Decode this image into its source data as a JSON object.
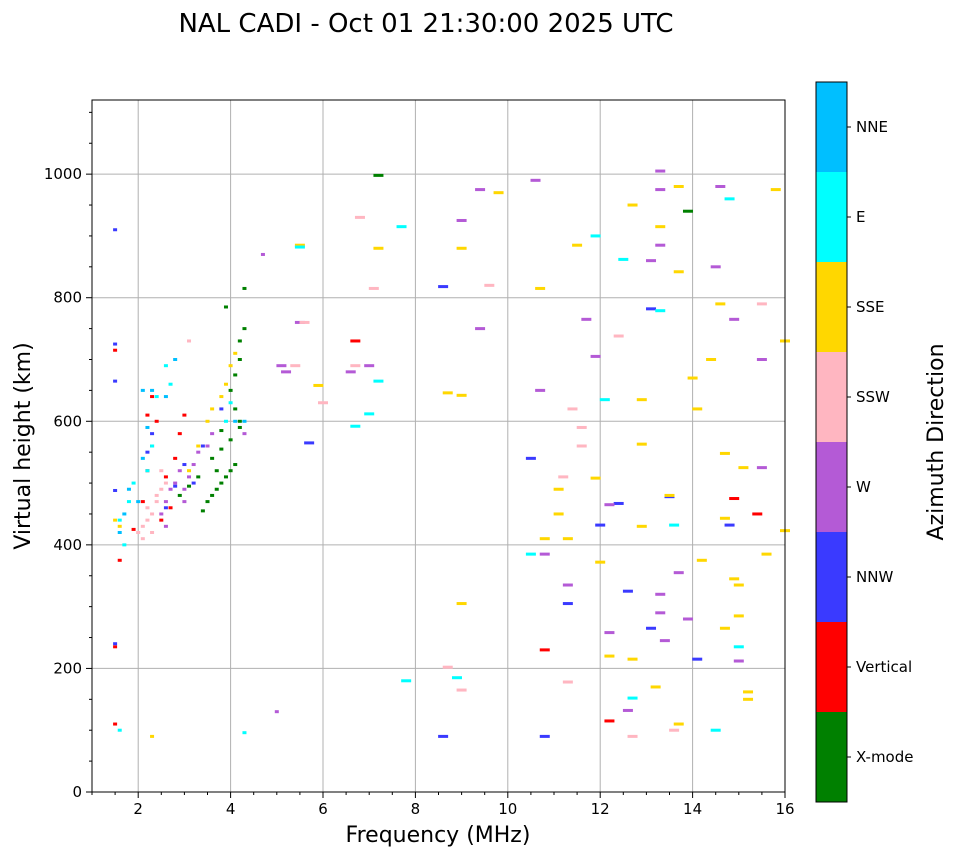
{
  "chart_data": {
    "type": "scatter",
    "title": "NAL CADI - Oct 01 21:30:00 2025 UTC",
    "xlabel": "Frequency (MHz)",
    "ylabel": "Virtual height (km)",
    "xlim": [
      1,
      16
    ],
    "ylim": [
      0,
      1120
    ],
    "x_ticks": [
      2,
      4,
      6,
      8,
      10,
      12,
      14,
      16
    ],
    "y_ticks": [
      0,
      200,
      400,
      600,
      800,
      1000
    ],
    "grid": true,
    "colorbar": {
      "label": "Azimuth Direction",
      "position": "right",
      "categories": [
        {
          "name": "X-mode",
          "color": "#008000"
        },
        {
          "name": "Vertical",
          "color": "#ff0000"
        },
        {
          "name": "NNW",
          "color": "#3a3aff"
        },
        {
          "name": "W",
          "color": "#b45ad6"
        },
        {
          "name": "SSW",
          "color": "#ffb6c1"
        },
        {
          "name": "SSE",
          "color": "#ffd700"
        },
        {
          "name": "E",
          "color": "#00ffff"
        },
        {
          "name": "NNE",
          "color": "#00bfff"
        }
      ]
    },
    "series": [
      {
        "name": "X-mode",
        "points": [
          [
            3.4,
            455
          ],
          [
            3.5,
            470
          ],
          [
            3.6,
            480
          ],
          [
            3.7,
            490
          ],
          [
            3.8,
            500
          ],
          [
            3.9,
            510
          ],
          [
            4.0,
            520
          ],
          [
            4.1,
            530
          ],
          [
            3.6,
            540
          ],
          [
            3.8,
            555
          ],
          [
            4.0,
            570
          ],
          [
            4.2,
            590
          ],
          [
            4.2,
            600
          ],
          [
            4.1,
            620
          ],
          [
            4.0,
            650
          ],
          [
            4.1,
            675
          ],
          [
            4.2,
            700
          ],
          [
            4.2,
            730
          ],
          [
            4.3,
            750
          ],
          [
            3.8,
            585
          ],
          [
            3.7,
            520
          ],
          [
            3.3,
            510
          ],
          [
            3.1,
            495
          ],
          [
            2.9,
            480
          ],
          [
            4.3,
            815
          ],
          [
            3.9,
            785
          ],
          [
            7.2,
            998
          ],
          [
            13.9,
            940
          ]
        ]
      },
      {
        "name": "Vertical",
        "points": [
          [
            1.5,
            715
          ],
          [
            1.5,
            235
          ],
          [
            1.5,
            110
          ],
          [
            1.6,
            375
          ],
          [
            1.9,
            425
          ],
          [
            2.1,
            470
          ],
          [
            2.2,
            520
          ],
          [
            2.3,
            560
          ],
          [
            2.4,
            600
          ],
          [
            2.6,
            510
          ],
          [
            2.8,
            540
          ],
          [
            2.9,
            580
          ],
          [
            3.0,
            610
          ],
          [
            2.7,
            460
          ],
          [
            2.5,
            440
          ],
          [
            2.2,
            610
          ],
          [
            2.3,
            640
          ],
          [
            6.7,
            730
          ],
          [
            12.2,
            115
          ],
          [
            14.9,
            475
          ],
          [
            15.4,
            450
          ],
          [
            10.8,
            230
          ]
        ]
      },
      {
        "name": "NNW",
        "points": [
          [
            1.5,
            910
          ],
          [
            1.5,
            725
          ],
          [
            1.5,
            665
          ],
          [
            1.5,
            488
          ],
          [
            1.5,
            240
          ],
          [
            2.2,
            550
          ],
          [
            2.3,
            580
          ],
          [
            2.6,
            460
          ],
          [
            2.8,
            495
          ],
          [
            3.0,
            530
          ],
          [
            3.2,
            500
          ],
          [
            3.4,
            560
          ],
          [
            3.8,
            620
          ],
          [
            5.7,
            565
          ],
          [
            8.6,
            818
          ],
          [
            8.6,
            90
          ],
          [
            10.5,
            540
          ],
          [
            10.8,
            90
          ],
          [
            11.3,
            305
          ],
          [
            12.0,
            432
          ],
          [
            12.4,
            467
          ],
          [
            12.6,
            325
          ],
          [
            13.1,
            265
          ],
          [
            13.5,
            478
          ],
          [
            14.1,
            215
          ],
          [
            14.8,
            432
          ],
          [
            13.1,
            782
          ]
        ]
      },
      {
        "name": "W",
        "points": [
          [
            2.6,
            470
          ],
          [
            2.7,
            490
          ],
          [
            2.8,
            500
          ],
          [
            2.9,
            520
          ],
          [
            3.0,
            490
          ],
          [
            3.1,
            510
          ],
          [
            3.2,
            530
          ],
          [
            3.3,
            550
          ],
          [
            3.5,
            560
          ],
          [
            3.6,
            580
          ],
          [
            2.5,
            450
          ],
          [
            2.6,
            430
          ],
          [
            3.0,
            470
          ],
          [
            4.3,
            580
          ],
          [
            4.7,
            870
          ],
          [
            5.0,
            130
          ],
          [
            5.1,
            690
          ],
          [
            5.2,
            680
          ],
          [
            5.5,
            760
          ],
          [
            6.6,
            680
          ],
          [
            7.0,
            690
          ],
          [
            9.0,
            925
          ],
          [
            9.4,
            975
          ],
          [
            9.4,
            750
          ],
          [
            10.6,
            990
          ],
          [
            10.7,
            650
          ],
          [
            10.8,
            385
          ],
          [
            11.3,
            335
          ],
          [
            11.7,
            765
          ],
          [
            11.9,
            705
          ],
          [
            12.2,
            258
          ],
          [
            12.2,
            465
          ],
          [
            13.1,
            860
          ],
          [
            13.3,
            1005
          ],
          [
            13.3,
            975
          ],
          [
            13.3,
            885
          ],
          [
            13.3,
            320
          ],
          [
            13.3,
            290
          ],
          [
            13.4,
            245
          ],
          [
            13.7,
            355
          ],
          [
            13.9,
            280
          ],
          [
            14.5,
            850
          ],
          [
            14.6,
            980
          ],
          [
            14.9,
            765
          ],
          [
            15.0,
            212
          ],
          [
            15.5,
            700
          ],
          [
            15.5,
            525
          ],
          [
            12.6,
            132
          ]
        ]
      },
      {
        "name": "SSW",
        "points": [
          [
            2.0,
            420
          ],
          [
            2.1,
            430
          ],
          [
            2.2,
            440
          ],
          [
            2.3,
            450
          ],
          [
            2.4,
            470
          ],
          [
            2.5,
            490
          ],
          [
            2.6,
            500
          ],
          [
            2.5,
            520
          ],
          [
            2.4,
            480
          ],
          [
            2.2,
            460
          ],
          [
            2.1,
            410
          ],
          [
            2.3,
            420
          ],
          [
            3.1,
            730
          ],
          [
            5.4,
            690
          ],
          [
            5.6,
            760
          ],
          [
            6.0,
            630
          ],
          [
            6.7,
            690
          ],
          [
            6.8,
            930
          ],
          [
            7.1,
            815
          ],
          [
            9.0,
            165
          ],
          [
            9.6,
            820
          ],
          [
            11.2,
            510
          ],
          [
            11.6,
            560
          ],
          [
            11.6,
            590
          ],
          [
            11.4,
            620
          ],
          [
            12.4,
            738
          ],
          [
            12.7,
            90
          ],
          [
            13.6,
            100
          ],
          [
            15.5,
            790
          ],
          [
            11.3,
            178
          ],
          [
            8.7,
            202
          ]
        ]
      },
      {
        "name": "SSE",
        "points": [
          [
            1.5,
            440
          ],
          [
            1.6,
            430
          ],
          [
            2.3,
            90
          ],
          [
            3.1,
            520
          ],
          [
            3.3,
            560
          ],
          [
            3.5,
            600
          ],
          [
            3.6,
            620
          ],
          [
            3.8,
            640
          ],
          [
            3.9,
            660
          ],
          [
            4.0,
            690
          ],
          [
            4.1,
            710
          ],
          [
            5.5,
            885
          ],
          [
            5.9,
            658
          ],
          [
            7.2,
            880
          ],
          [
            8.7,
            646
          ],
          [
            9.0,
            305
          ],
          [
            9.0,
            642
          ],
          [
            9.0,
            880
          ],
          [
            9.8,
            970
          ],
          [
            10.7,
            815
          ],
          [
            10.8,
            410
          ],
          [
            11.1,
            450
          ],
          [
            11.1,
            490
          ],
          [
            11.3,
            410
          ],
          [
            11.5,
            885
          ],
          [
            11.9,
            508
          ],
          [
            12.0,
            372
          ],
          [
            12.2,
            220
          ],
          [
            12.7,
            950
          ],
          [
            12.7,
            215
          ],
          [
            12.9,
            635
          ],
          [
            12.9,
            563
          ],
          [
            12.9,
            430
          ],
          [
            13.2,
            170
          ],
          [
            13.3,
            915
          ],
          [
            13.5,
            480
          ],
          [
            13.7,
            980
          ],
          [
            13.7,
            842
          ],
          [
            13.7,
            110
          ],
          [
            14.0,
            670
          ],
          [
            14.1,
            620
          ],
          [
            14.2,
            375
          ],
          [
            14.4,
            700
          ],
          [
            14.6,
            790
          ],
          [
            14.7,
            548
          ],
          [
            14.7,
            443
          ],
          [
            14.7,
            265
          ],
          [
            14.9,
            345
          ],
          [
            15.0,
            285
          ],
          [
            15.0,
            335
          ],
          [
            15.1,
            525
          ],
          [
            15.2,
            162
          ],
          [
            15.2,
            150
          ],
          [
            15.8,
            975
          ],
          [
            15.6,
            385
          ],
          [
            16.0,
            423
          ],
          [
            16.0,
            730
          ]
        ]
      },
      {
        "name": "E",
        "points": [
          [
            1.6,
            100
          ],
          [
            1.6,
            440
          ],
          [
            1.7,
            400
          ],
          [
            1.8,
            470
          ],
          [
            1.9,
            500
          ],
          [
            2.2,
            520
          ],
          [
            2.3,
            560
          ],
          [
            2.4,
            640
          ],
          [
            2.6,
            690
          ],
          [
            2.7,
            660
          ],
          [
            3.9,
            600
          ],
          [
            4.0,
            630
          ],
          [
            4.3,
            96
          ],
          [
            5.5,
            882
          ],
          [
            6.7,
            592
          ],
          [
            7.0,
            612
          ],
          [
            7.2,
            665
          ],
          [
            7.7,
            915
          ],
          [
            7.8,
            180
          ],
          [
            8.9,
            185
          ],
          [
            10.5,
            385
          ],
          [
            11.9,
            900
          ],
          [
            12.1,
            635
          ],
          [
            12.5,
            862
          ],
          [
            12.7,
            152
          ],
          [
            13.3,
            779
          ],
          [
            13.6,
            432
          ],
          [
            14.5,
            100
          ],
          [
            14.8,
            960
          ],
          [
            15.0,
            235
          ]
        ]
      },
      {
        "name": "NNE",
        "points": [
          [
            1.6,
            420
          ],
          [
            1.7,
            450
          ],
          [
            1.8,
            490
          ],
          [
            2.0,
            470
          ],
          [
            2.1,
            540
          ],
          [
            2.2,
            590
          ],
          [
            2.3,
            650
          ],
          [
            2.6,
            640
          ],
          [
            2.8,
            700
          ],
          [
            2.1,
            650
          ],
          [
            4.1,
            600
          ],
          [
            4.3,
            600
          ]
        ]
      }
    ]
  }
}
